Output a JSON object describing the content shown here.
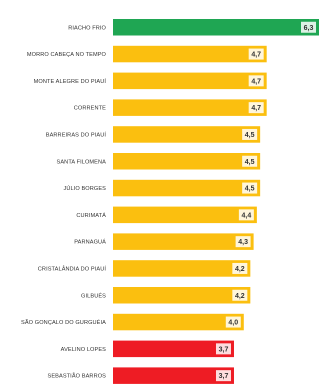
{
  "chart_data": {
    "type": "bar",
    "orientation": "horizontal",
    "categories": [
      "RIACHO FRIO",
      "MORRO CABEÇA NO TEMPO",
      "MONTE ALEGRE DO PIAUÍ",
      "CORRENTE",
      "BARREIRAS DO PIAUÍ",
      "SANTA FILOMENA",
      "JÚLIO BORGES",
      "CURIMATÁ",
      "PARNAGUÁ",
      "CRISTALÂNDIA DO PIAUÍ",
      "GILBUÉS",
      "SÃO GONÇALO DO GURGUÉIA",
      "AVELINO LOPES",
      "SEBASTIÃO BARROS"
    ],
    "values": [
      6.3,
      4.7,
      4.7,
      4.7,
      4.5,
      4.5,
      4.5,
      4.4,
      4.3,
      4.2,
      4.2,
      4.0,
      3.7,
      3.7
    ],
    "value_labels": [
      "6,3",
      "4,7",
      "4,7",
      "4,7",
      "4,5",
      "4,5",
      "4,5",
      "4,4",
      "4,3",
      "4,2",
      "4,2",
      "4,0",
      "3,7",
      "3,7"
    ],
    "bar_colors": [
      "#1fa653",
      "#fbbf0f",
      "#fbbf0f",
      "#fbbf0f",
      "#fbbf0f",
      "#fbbf0f",
      "#fbbf0f",
      "#fbbf0f",
      "#fbbf0f",
      "#fbbf0f",
      "#fbbf0f",
      "#fbbf0f",
      "#ee1c24",
      "#ee1c24"
    ],
    "xlim": [
      0,
      6.3
    ],
    "grid": false,
    "legend": "none",
    "title": "",
    "xlabel": "",
    "ylabel": ""
  }
}
